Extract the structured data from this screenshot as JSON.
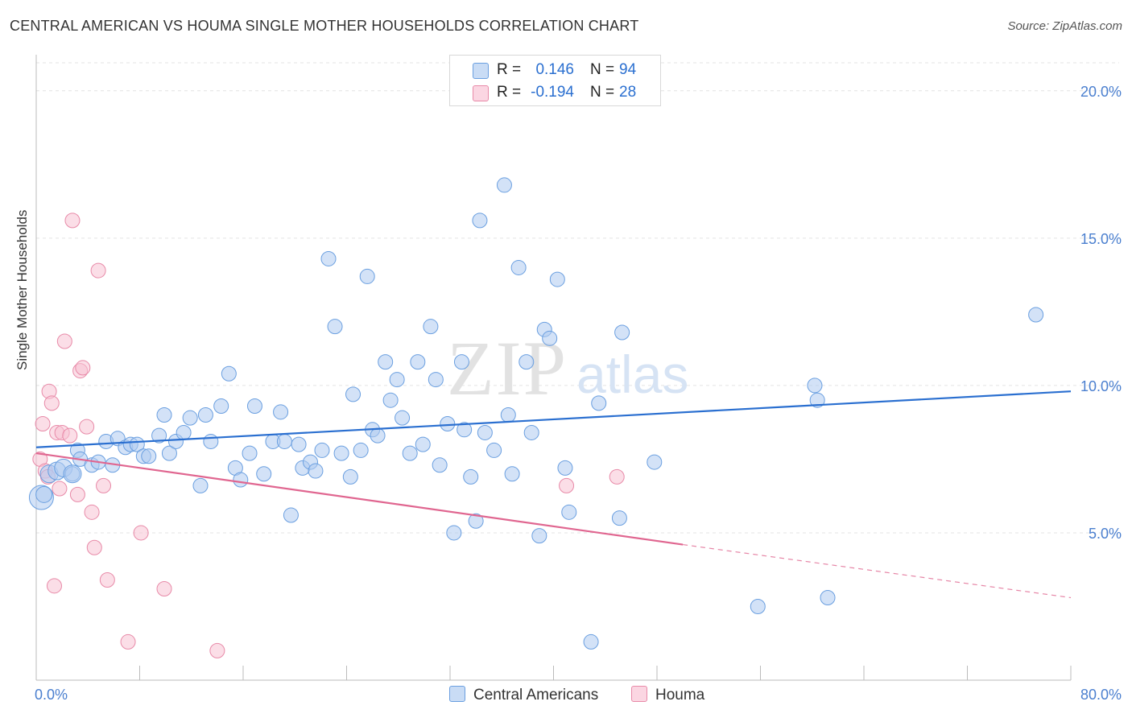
{
  "title": "CENTRAL AMERICAN VS HOUMA SINGLE MOTHER HOUSEHOLDS CORRELATION CHART",
  "source": "Source: ZipAtlas.com",
  "watermark": {
    "zip": "ZIP",
    "atlas": "atlas"
  },
  "legend_top": [
    {
      "r_label": "R =",
      "r_value": "0.146",
      "n_label": "N =",
      "n_value": "94",
      "color": "#aecbf0"
    },
    {
      "r_label": "R =",
      "r_value": "-0.194",
      "n_label": "N =",
      "n_value": "28",
      "color": "#f7c3d3"
    }
  ],
  "legend_bottom": [
    {
      "label": "Central Americans",
      "color": "#aecbf0"
    },
    {
      "label": "Houma",
      "color": "#f7c3d3"
    }
  ],
  "chart_data": {
    "type": "scatter",
    "title": "CENTRAL AMERICAN VS HOUMA SINGLE MOTHER HOUSEHOLDS CORRELATION CHART",
    "xlabel": "",
    "ylabel": "Single Mother Households",
    "xlim": [
      0,
      80
    ],
    "ylim": [
      0,
      20
    ],
    "x_tick_labels": [
      "0.0%",
      "80.0%"
    ],
    "y_ticks": [
      5,
      10,
      15,
      20
    ],
    "y_tick_labels": [
      "5.0%",
      "10.0%",
      "15.0%",
      "20.0%"
    ],
    "grid": true,
    "legend_position": "top-center",
    "series": [
      {
        "name": "Central Americans",
        "color": "#6a9fe0",
        "fill": "#aecbf0",
        "trend": {
          "x": [
            0,
            80
          ],
          "y": [
            7.9,
            9.8
          ],
          "style": "solid",
          "color": "#2a6fd0"
        },
        "points": [
          [
            0.4,
            6.2
          ],
          [
            0.6,
            6.3
          ],
          [
            1.0,
            7.0
          ],
          [
            1.6,
            7.1
          ],
          [
            2.1,
            7.2
          ],
          [
            2.8,
            7.0
          ],
          [
            3.2,
            7.8
          ],
          [
            3.4,
            7.5
          ],
          [
            4.3,
            7.3
          ],
          [
            4.8,
            7.4
          ],
          [
            5.4,
            8.1
          ],
          [
            5.9,
            7.3
          ],
          [
            6.3,
            8.2
          ],
          [
            6.9,
            7.9
          ],
          [
            7.3,
            8.0
          ],
          [
            7.8,
            8.0
          ],
          [
            8.3,
            7.6
          ],
          [
            8.7,
            7.6
          ],
          [
            9.5,
            8.3
          ],
          [
            9.9,
            9.0
          ],
          [
            10.3,
            7.7
          ],
          [
            10.8,
            8.1
          ],
          [
            11.4,
            8.4
          ],
          [
            11.9,
            8.9
          ],
          [
            12.7,
            6.6
          ],
          [
            13.1,
            9.0
          ],
          [
            13.5,
            8.1
          ],
          [
            14.3,
            9.3
          ],
          [
            14.9,
            10.4
          ],
          [
            15.4,
            7.2
          ],
          [
            15.8,
            6.8
          ],
          [
            16.5,
            7.7
          ],
          [
            16.9,
            9.3
          ],
          [
            17.6,
            7.0
          ],
          [
            18.3,
            8.1
          ],
          [
            18.9,
            9.1
          ],
          [
            19.2,
            8.1
          ],
          [
            19.7,
            5.6
          ],
          [
            20.3,
            8.0
          ],
          [
            20.6,
            7.2
          ],
          [
            21.2,
            7.4
          ],
          [
            21.6,
            7.1
          ],
          [
            22.1,
            7.8
          ],
          [
            22.6,
            14.3
          ],
          [
            23.1,
            12.0
          ],
          [
            23.6,
            7.7
          ],
          [
            24.3,
            6.9
          ],
          [
            24.5,
            9.7
          ],
          [
            25.1,
            7.8
          ],
          [
            25.6,
            13.7
          ],
          [
            26.0,
            8.5
          ],
          [
            26.4,
            8.3
          ],
          [
            27.0,
            10.8
          ],
          [
            27.4,
            9.5
          ],
          [
            27.9,
            10.2
          ],
          [
            28.3,
            8.9
          ],
          [
            28.9,
            7.7
          ],
          [
            29.5,
            10.8
          ],
          [
            29.9,
            8.0
          ],
          [
            30.5,
            12.0
          ],
          [
            30.9,
            10.2
          ],
          [
            31.2,
            7.3
          ],
          [
            31.8,
            8.7
          ],
          [
            32.3,
            5.0
          ],
          [
            32.9,
            10.8
          ],
          [
            33.1,
            8.5
          ],
          [
            33.6,
            6.9
          ],
          [
            34.0,
            5.4
          ],
          [
            34.3,
            15.6
          ],
          [
            34.7,
            8.4
          ],
          [
            35.4,
            7.8
          ],
          [
            36.2,
            16.8
          ],
          [
            36.5,
            9.0
          ],
          [
            36.8,
            7.0
          ],
          [
            37.3,
            14.0
          ],
          [
            37.9,
            10.8
          ],
          [
            38.3,
            8.4
          ],
          [
            38.9,
            4.9
          ],
          [
            39.3,
            11.9
          ],
          [
            39.7,
            11.6
          ],
          [
            40.3,
            13.6
          ],
          [
            40.9,
            7.2
          ],
          [
            41.2,
            5.7
          ],
          [
            42.9,
            1.3
          ],
          [
            43.5,
            9.4
          ],
          [
            45.1,
            5.5
          ],
          [
            45.3,
            11.8
          ],
          [
            47.8,
            7.4
          ],
          [
            55.8,
            2.5
          ],
          [
            60.2,
            10.0
          ],
          [
            60.4,
            9.5
          ],
          [
            61.2,
            2.8
          ],
          [
            77.3,
            12.4
          ],
          [
            2.8,
            7.0
          ]
        ]
      },
      {
        "name": "Houma",
        "color": "#e88aa8",
        "fill": "#f7c3d3",
        "trend": {
          "x": [
            0,
            50
          ],
          "y": [
            7.7,
            4.6
          ],
          "style": "solid",
          "dashed_to": [
            80,
            2.8
          ],
          "color": "#e06690"
        },
        "points": [
          [
            0.3,
            7.5
          ],
          [
            0.5,
            8.7
          ],
          [
            0.7,
            7.1
          ],
          [
            0.9,
            6.9
          ],
          [
            1.0,
            9.8
          ],
          [
            1.2,
            9.4
          ],
          [
            1.4,
            3.2
          ],
          [
            1.6,
            8.4
          ],
          [
            1.8,
            6.5
          ],
          [
            2.0,
            8.4
          ],
          [
            2.2,
            11.5
          ],
          [
            2.6,
            8.3
          ],
          [
            2.8,
            15.6
          ],
          [
            3.2,
            6.3
          ],
          [
            3.4,
            10.5
          ],
          [
            3.6,
            10.6
          ],
          [
            3.9,
            8.6
          ],
          [
            4.3,
            5.7
          ],
          [
            4.5,
            4.5
          ],
          [
            4.8,
            13.9
          ],
          [
            5.2,
            6.6
          ],
          [
            5.5,
            3.4
          ],
          [
            7.1,
            1.3
          ],
          [
            8.1,
            5.0
          ],
          [
            9.9,
            3.1
          ],
          [
            14.0,
            1.0
          ],
          [
            41.0,
            6.6
          ],
          [
            44.9,
            6.9
          ]
        ]
      }
    ]
  }
}
